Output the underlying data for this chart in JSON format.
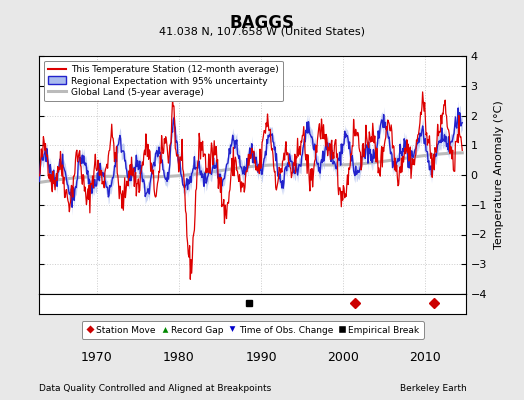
{
  "title": "BAGGS",
  "subtitle": "41.038 N, 107.658 W (United States)",
  "ylabel": "Temperature Anomaly (°C)",
  "xlabel_left": "Data Quality Controlled and Aligned at Breakpoints",
  "xlabel_right": "Berkeley Earth",
  "ylim": [
    -4,
    4
  ],
  "xlim": [
    1963,
    2015
  ],
  "xticks": [
    1970,
    1980,
    1990,
    2000,
    2010
  ],
  "yticks": [
    -4,
    -3,
    -2,
    -1,
    0,
    1,
    2,
    3,
    4
  ],
  "bg_color": "#e8e8e8",
  "plot_bg_color": "#ffffff",
  "station_color": "#dd0000",
  "regional_color": "#2222cc",
  "regional_fill_color": "#aabbee",
  "global_color": "#bbbbbb",
  "legend_items": [
    {
      "label": "This Temperature Station (12-month average)",
      "color": "#dd0000"
    },
    {
      "label": "Regional Expectation with 95% uncertainty",
      "color": "#2222cc"
    },
    {
      "label": "Global Land (5-year average)",
      "color": "#bbbbbb"
    }
  ],
  "marker_items": [
    {
      "label": "Station Move",
      "color": "#cc0000",
      "marker": "D"
    },
    {
      "label": "Record Gap",
      "color": "#008800",
      "marker": "^"
    },
    {
      "label": "Time of Obs. Change",
      "color": "#0000cc",
      "marker": "v"
    },
    {
      "label": "Empirical Break",
      "color": "#000000",
      "marker": "s"
    }
  ],
  "empirical_break_x": 1988.5,
  "station_move_x1": 2001.5,
  "station_move_x2": 2011.0,
  "seed": 42
}
